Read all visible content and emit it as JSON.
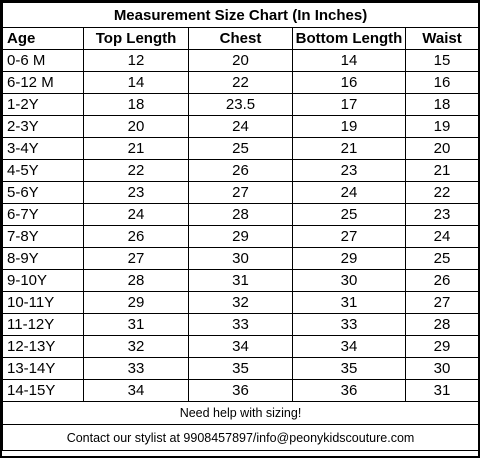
{
  "title": "Measurement Size Chart (In Inches)",
  "headers": [
    "Age",
    "Top Length",
    "Chest",
    "Bottom Length",
    "Waist"
  ],
  "rows": [
    [
      "0-6 M",
      "12",
      "20",
      "14",
      "15"
    ],
    [
      "6-12 M",
      "14",
      "22",
      "16",
      "16"
    ],
    [
      "1-2Y",
      "18",
      "23.5",
      "17",
      "18"
    ],
    [
      "2-3Y",
      "20",
      "24",
      "19",
      "19"
    ],
    [
      "3-4Y",
      "21",
      "25",
      "21",
      "20"
    ],
    [
      "4-5Y",
      "22",
      "26",
      "23",
      "21"
    ],
    [
      "5-6Y",
      "23",
      "27",
      "24",
      "22"
    ],
    [
      "6-7Y",
      "24",
      "28",
      "25",
      "23"
    ],
    [
      "7-8Y",
      "26",
      "29",
      "27",
      "24"
    ],
    [
      "8-9Y",
      "27",
      "30",
      "29",
      "25"
    ],
    [
      "9-10Y",
      "28",
      "31",
      "30",
      "26"
    ],
    [
      "10-11Y",
      "29",
      "32",
      "31",
      "27"
    ],
    [
      "11-12Y",
      "31",
      "33",
      "33",
      "28"
    ],
    [
      "12-13Y",
      "32",
      "34",
      "34",
      "29"
    ],
    [
      "13-14Y",
      "33",
      "35",
      "35",
      "30"
    ],
    [
      "14-15Y",
      "34",
      "36",
      "36",
      "31"
    ]
  ],
  "help_text": "Need help with sizing!",
  "contact_text": "Contact our stylist at 9908457897/info@peonykidscouture.com"
}
